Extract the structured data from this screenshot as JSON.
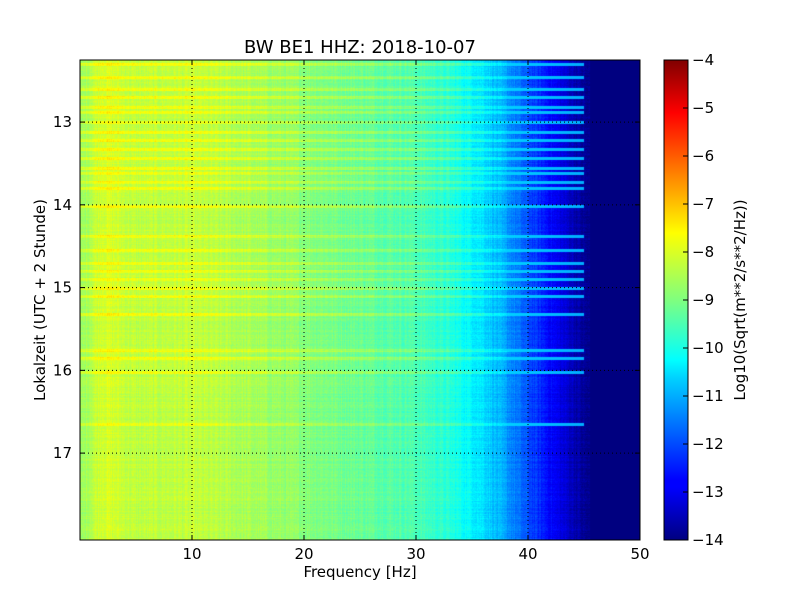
{
  "chart_data": {
    "type": "heatmap",
    "title": "BW BE1 HHZ: 2018-10-07",
    "xlabel": "Frequency [Hz]",
    "ylabel": "Lokalzeit (UTC + 2 Stunde)",
    "xlim": [
      0,
      50
    ],
    "ylim": [
      12.25,
      18.05
    ],
    "y_inverted": true,
    "x_ticks": [
      10,
      20,
      30,
      40,
      50
    ],
    "x_tick_labels": [
      "10",
      "20",
      "30",
      "40",
      "50"
    ],
    "y_ticks": [
      13,
      14,
      15,
      16,
      17
    ],
    "y_tick_labels": [
      "13",
      "14",
      "15",
      "16",
      "17"
    ],
    "grid": true,
    "colormap": "jet",
    "colorbar": {
      "label": "Log10(Sqrt(m**2/s**2/Hz))",
      "range": [
        -14,
        -4
      ],
      "ticks": [
        -4,
        -5,
        -6,
        -7,
        -8,
        -9,
        -10,
        -11,
        -12,
        -13,
        -14
      ],
      "tick_labels": [
        "−4",
        "−5",
        "−6",
        "−7",
        "−8",
        "−9",
        "−10",
        "−11",
        "−12",
        "−13",
        "−14"
      ]
    },
    "spectral_profile": {
      "freq_hz": [
        0,
        2,
        5,
        10,
        15,
        20,
        25,
        30,
        33,
        36,
        38,
        40,
        42,
        44,
        45,
        46,
        50
      ],
      "log10_amplitude": [
        -8.8,
        -8.1,
        -8.4,
        -8.35,
        -8.6,
        -8.9,
        -9.2,
        -9.5,
        -9.9,
        -10.5,
        -11.2,
        -12.0,
        -12.7,
        -13.4,
        -13.8,
        -14.0,
        -14.0
      ]
    },
    "highlight_bands_hour": [
      12.3,
      12.45,
      12.6,
      12.7,
      12.82,
      12.88,
      13.0,
      13.12,
      13.22,
      13.33,
      13.43,
      13.55,
      13.62,
      13.72,
      13.8,
      14.02,
      14.38,
      14.55,
      14.7,
      14.8,
      14.9,
      15.0,
      15.1,
      15.32,
      15.75,
      15.85,
      16.02,
      16.65
    ]
  }
}
